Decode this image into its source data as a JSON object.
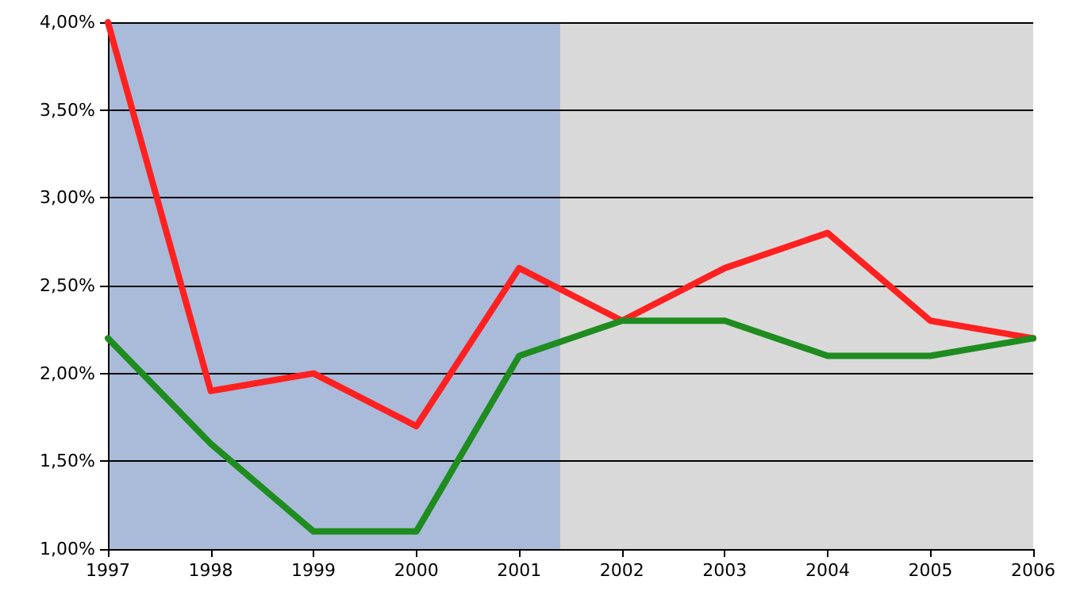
{
  "chart_data": {
    "type": "line",
    "x": [
      1997,
      1998,
      1999,
      2000,
      2001,
      2002,
      2003,
      2004,
      2005,
      2006
    ],
    "series": [
      {
        "color": "#ff2020",
        "values": [
          4.0,
          1.9,
          2.0,
          1.7,
          2.6,
          2.3,
          2.6,
          2.8,
          2.3,
          2.2
        ]
      },
      {
        "color": "#1e8c1e",
        "values": [
          2.2,
          1.6,
          1.1,
          1.1,
          2.1,
          2.3,
          2.3,
          2.1,
          2.1,
          2.2
        ]
      }
    ],
    "xlim": [
      1997,
      2006
    ],
    "xticks": [
      1997,
      1998,
      1999,
      2000,
      2001,
      2002,
      2003,
      2004,
      2005,
      2006
    ],
    "ylim": [
      1,
      4
    ],
    "yticks": [
      {
        "value": 1,
        "label": "1,00%"
      },
      {
        "value": 1.5,
        "label": "1,50%"
      },
      {
        "value": 2,
        "label": "2,00%"
      },
      {
        "value": 2.5,
        "label": "2,50%"
      },
      {
        "value": 3,
        "label": "3,00%"
      },
      {
        "value": 3.5,
        "label": "3,50%"
      },
      {
        "value": 4,
        "label": "4,00%"
      }
    ],
    "bands": [
      {
        "axis": "x",
        "from": 1997,
        "to": 2001.4,
        "color": "#a9bbd9"
      },
      {
        "axis": "x",
        "from": 2001.4,
        "to": 2006,
        "color": "#d9d9d9"
      }
    ],
    "grid": "y",
    "marker": "none",
    "line_style": "solid"
  }
}
